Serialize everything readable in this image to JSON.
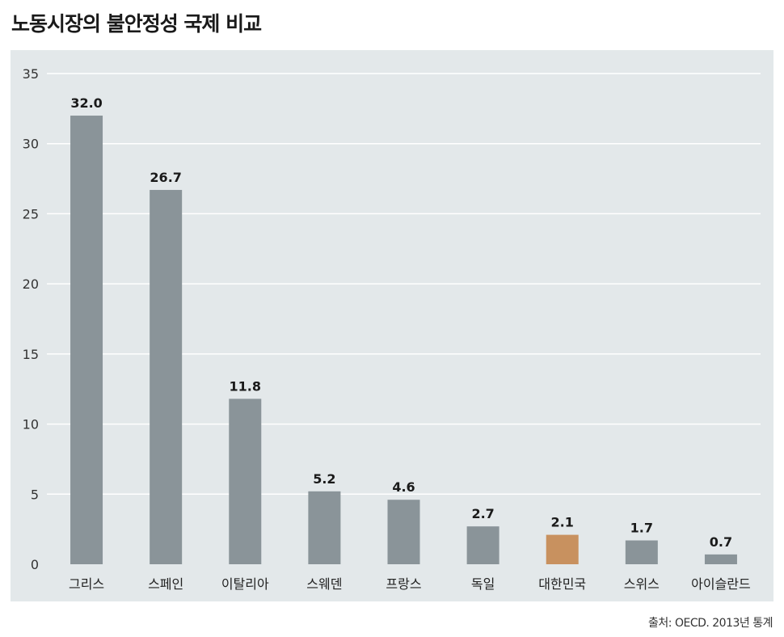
{
  "title": "노동시장의 불안정성 국제 비교",
  "source": "출처: OECD. 2013년 통계",
  "colors": {
    "panel": "#e3e8ea",
    "bar": "#8a9499",
    "highlight": "#c8915f",
    "grid": "#ffffff"
  },
  "chart_data": {
    "type": "bar",
    "categories": [
      "그리스",
      "스페인",
      "이탈리아",
      "스웨덴",
      "프랑스",
      "독일",
      "대한민국",
      "스위스",
      "아이슬란드"
    ],
    "values": [
      32.0,
      26.7,
      11.8,
      5.2,
      4.6,
      2.7,
      2.1,
      1.7,
      0.7
    ],
    "data_labels": [
      "32.0",
      "26.7",
      "11.8",
      "5.2",
      "4.6",
      "2.7",
      "2.1",
      "1.7",
      "0.7"
    ],
    "highlight_category": "대한민국",
    "ylim": [
      0,
      35
    ],
    "yticks": [
      0,
      5,
      10,
      15,
      20,
      25,
      30,
      35
    ],
    "grid": true,
    "xlabel": "",
    "ylabel": ""
  }
}
